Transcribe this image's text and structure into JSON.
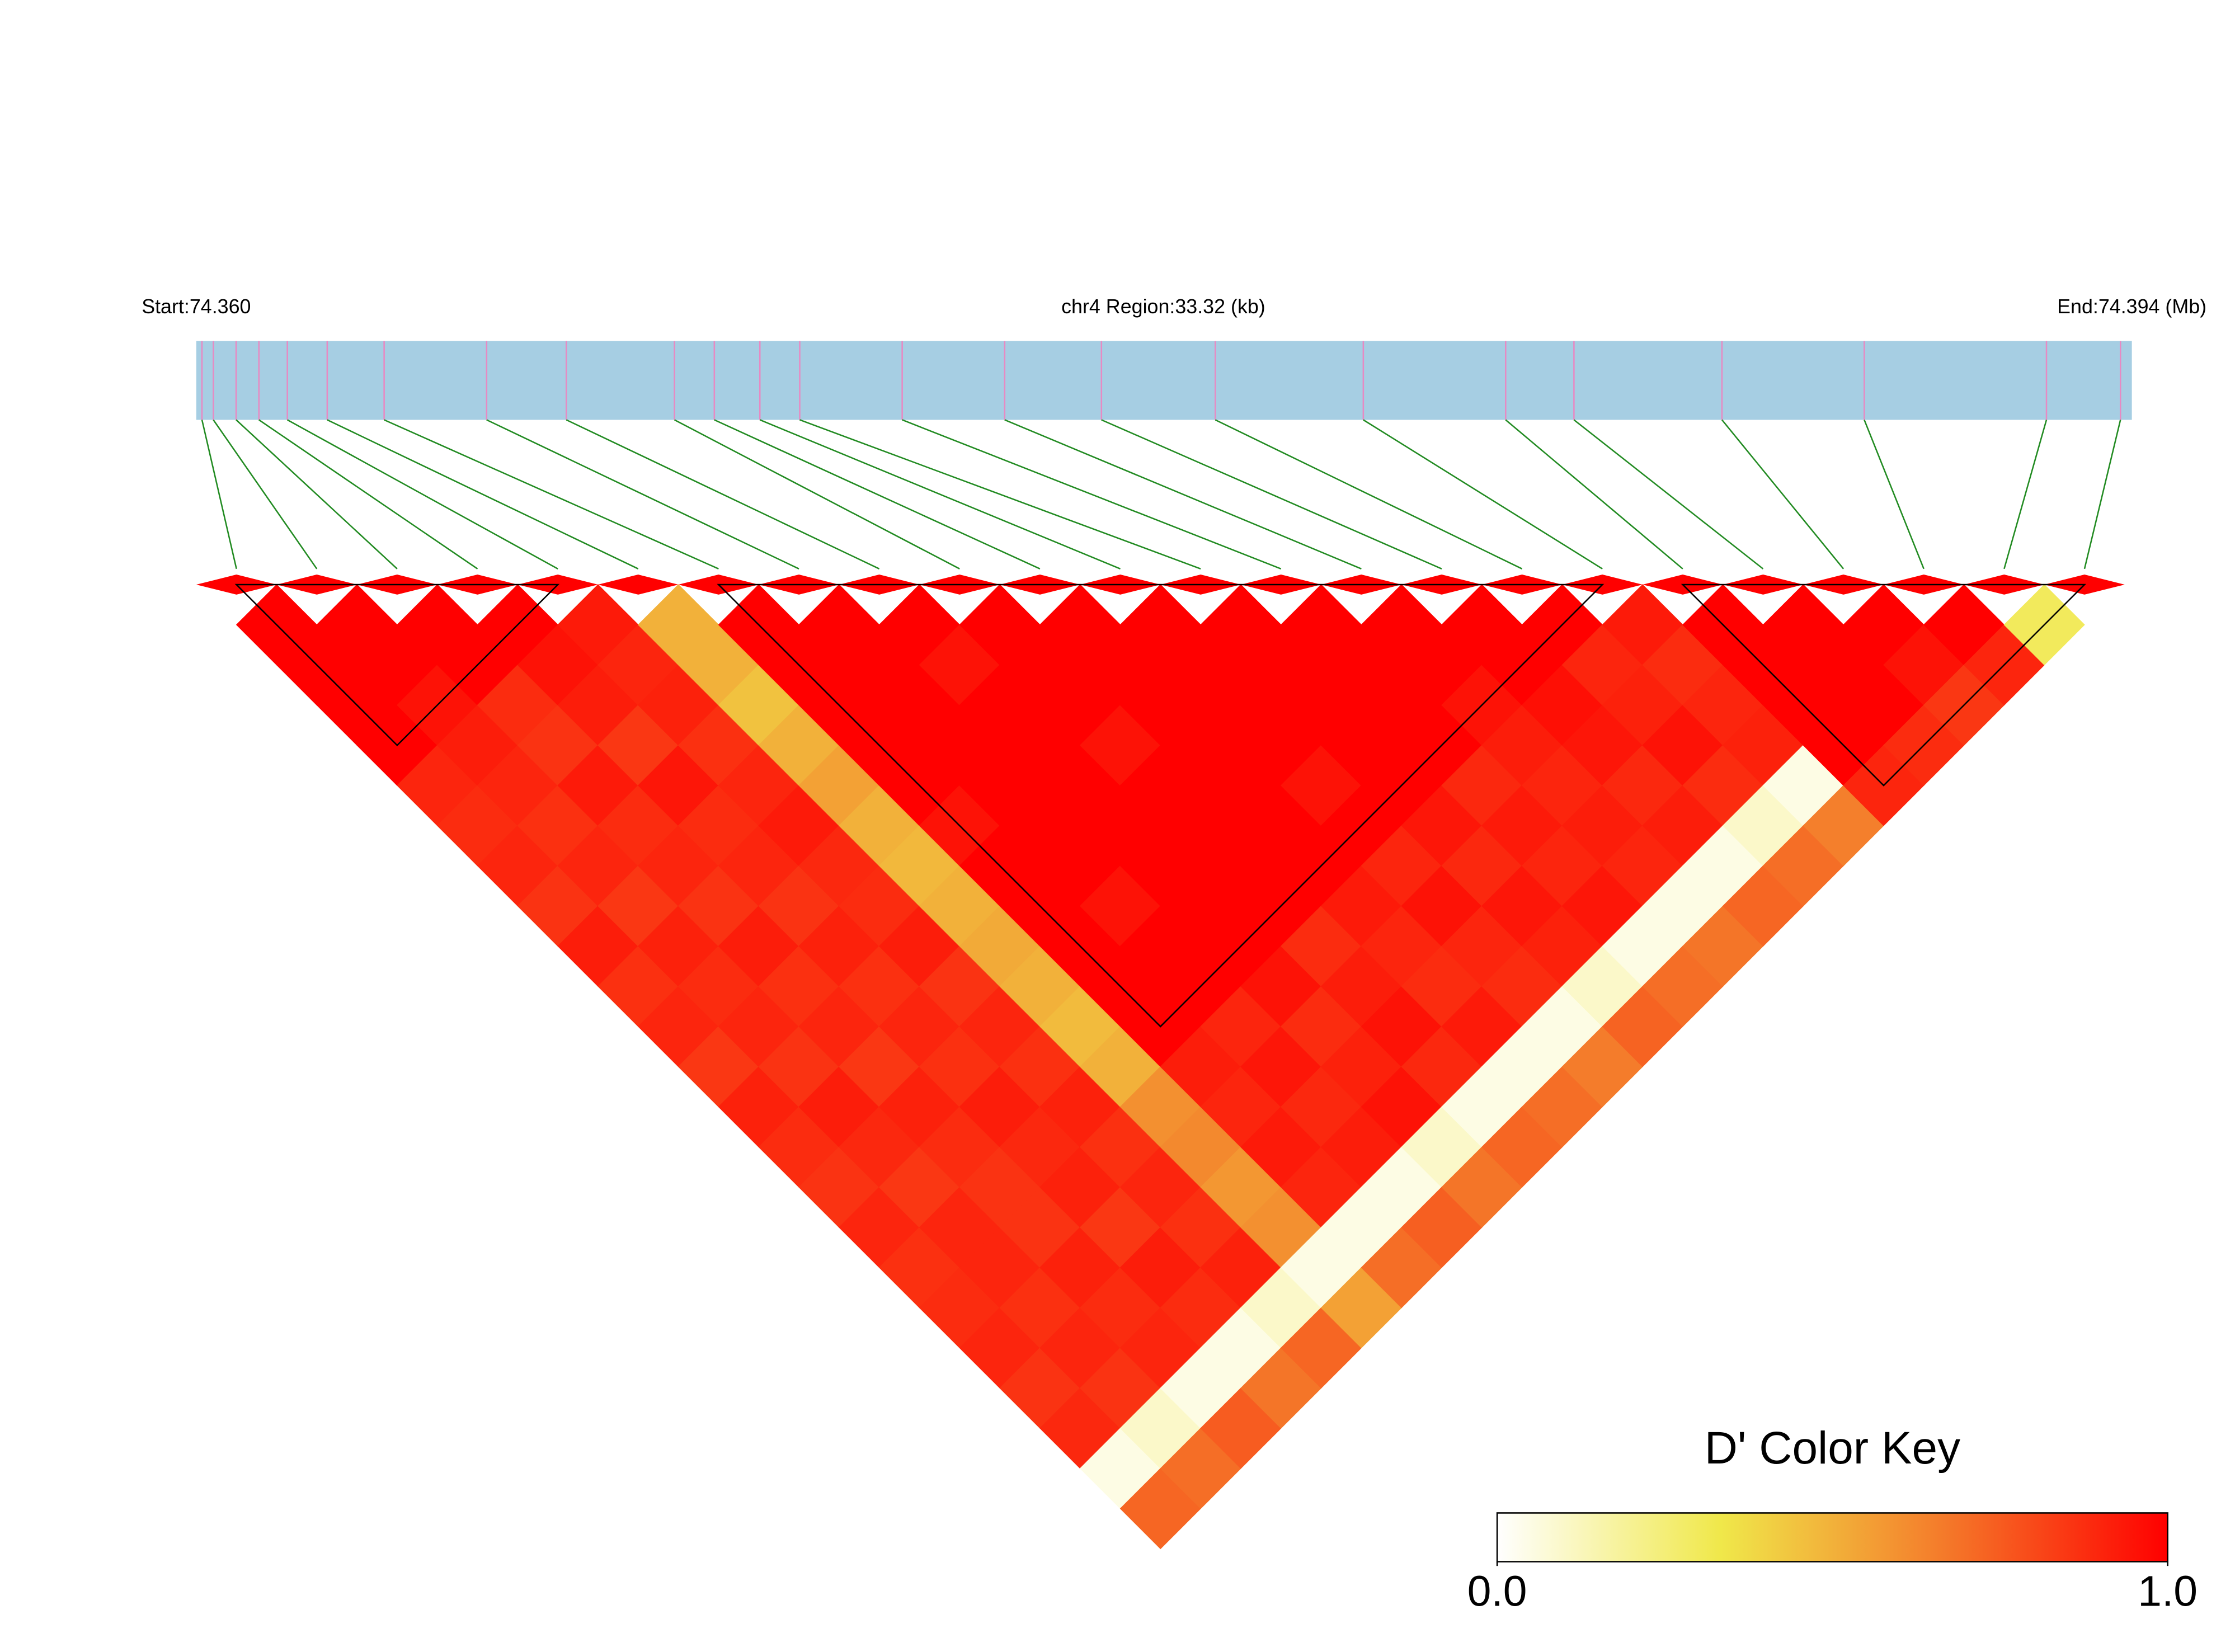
{
  "chart_data": {
    "type": "heatmap",
    "start_label": "Start:74.360",
    "region_label": "chr4 Region:33.32 (kb)",
    "end_label": "End:74.394 (Mb)",
    "xlim": [
      74.36,
      74.394
    ],
    "bar_color": "#a6cee3",
    "snp_line_color": "#e78ac3",
    "connector_color": "#228b22",
    "marker_color": "#ff0000",
    "block_outline_color": "#000000",
    "snp_positions": [
      74.3601,
      74.3603,
      74.3607,
      74.3611,
      74.3616,
      74.3623,
      74.3633,
      74.3651,
      74.3665,
      74.3684,
      74.3691,
      74.3699,
      74.3706,
      74.3724,
      74.3742,
      74.3759,
      74.3779,
      74.3805,
      74.383,
      74.3842,
      74.3868,
      74.3893,
      74.3925,
      74.3938
    ],
    "blocks": [
      [
        0,
        4
      ],
      [
        6,
        17
      ],
      [
        18,
        23
      ]
    ],
    "dprime": [
      [
        1
      ],
      [
        1,
        1
      ],
      [
        1,
        1,
        1
      ],
      [
        1,
        0.95,
        1,
        1
      ],
      [
        0.9,
        0.92,
        0.88,
        0.95,
        0.93
      ],
      [
        0.88,
        0.9,
        0.86,
        0.92,
        0.9,
        0.5
      ],
      [
        0.9,
        0.87,
        0.93,
        0.85,
        0.91,
        0.5,
        1
      ],
      [
        0.86,
        0.9,
        0.88,
        0.94,
        0.87,
        0.45,
        1,
        1
      ],
      [
        0.92,
        0.85,
        0.9,
        0.88,
        0.9,
        0.5,
        1,
        1,
        1
      ],
      [
        0.87,
        0.91,
        0.86,
        0.9,
        0.93,
        0.55,
        1,
        1,
        0.95,
        1
      ],
      [
        0.9,
        0.88,
        0.92,
        0.86,
        0.89,
        0.5,
        1,
        1,
        1,
        1,
        1
      ],
      [
        0.85,
        0.9,
        0.87,
        0.91,
        0.88,
        0.48,
        0.95,
        1,
        1,
        1,
        1,
        1
      ],
      [
        0.91,
        0.86,
        0.9,
        0.87,
        0.92,
        0.5,
        1,
        1,
        1,
        0.95,
        1,
        1,
        1
      ],
      [
        0.88,
        0.92,
        0.85,
        0.9,
        0.86,
        0.52,
        1,
        1,
        1,
        1,
        1,
        1,
        1,
        1
      ],
      [
        0.86,
        0.89,
        0.91,
        0.87,
        0.9,
        0.5,
        1,
        0.95,
        1,
        1,
        1,
        1,
        1,
        1,
        1
      ],
      [
        0.9,
        0.85,
        0.88,
        0.92,
        0.87,
        0.47,
        1,
        1,
        1,
        1,
        1,
        0.95,
        1,
        1,
        1,
        1
      ],
      [
        0.87,
        0.9,
        0.86,
        0.89,
        0.91,
        0.5,
        1,
        1,
        1,
        1,
        1,
        1,
        1,
        1,
        0.95,
        1,
        1
      ],
      [
        0.88,
        0.9,
        0.86,
        0.91,
        0.87,
        0.6,
        0.92,
        0.9,
        0.95,
        0.88,
        0.93,
        0.9,
        0.94,
        0.89,
        0.92,
        0.96,
        0.9,
        0.93
      ],
      [
        0.9,
        0.87,
        0.91,
        0.85,
        0.9,
        0.62,
        0.9,
        0.94,
        0.88,
        0.92,
        0.9,
        0.95,
        0.89,
        0.93,
        0.9,
        0.94,
        0.91,
        0.88,
        1
      ],
      [
        0.86,
        0.9,
        0.88,
        0.92,
        0.87,
        0.58,
        0.93,
        0.89,
        0.91,
        0.95,
        0.88,
        0.9,
        0.94,
        0.9,
        0.92,
        0.89,
        0.95,
        0.9,
        1,
        1
      ],
      [
        0.89,
        0.86,
        0.9,
        0.88,
        0.91,
        0.6,
        0.9,
        0.92,
        0.95,
        0.89,
        0.93,
        0.88,
        0.91,
        0.94,
        0.9,
        0.92,
        0.88,
        0.91,
        1,
        1,
        1
      ],
      [
        0.05,
        0.1,
        0.05,
        0.05,
        0.1,
        0.05,
        0.05,
        0.05,
        0.1,
        0.05,
        0.05,
        0.05,
        0.1,
        0.05,
        0.05,
        0.05,
        0.1,
        0.05,
        1,
        1,
        0.95,
        1
      ],
      [
        0.72,
        0.7,
        0.75,
        0.68,
        0.72,
        0.55,
        0.7,
        0.74,
        0.68,
        0.72,
        0.7,
        0.66,
        0.73,
        0.7,
        0.68,
        0.72,
        0.7,
        0.65,
        0.9,
        0.88,
        0.85,
        0.9,
        0.3
      ]
    ],
    "colorbar": {
      "title": "D' Color Key",
      "lim": [
        0,
        1
      ],
      "ticks": [
        {
          "value": 0,
          "label": "0.0"
        },
        {
          "value": 1,
          "label": "1.0"
        }
      ],
      "colors": [
        "#ffffff",
        "#f0e84a",
        "#f47a2a",
        "#ff0000"
      ]
    }
  }
}
